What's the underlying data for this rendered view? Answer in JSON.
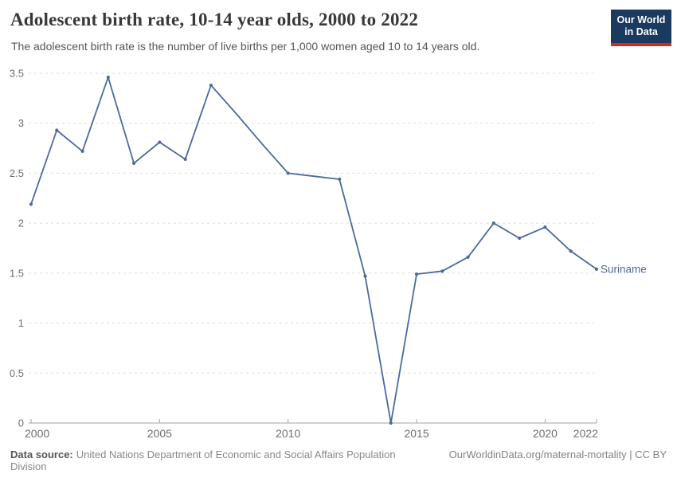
{
  "header": {
    "title": "Adolescent birth rate, 10-14 year olds, 2000 to 2022",
    "subtitle": "The adolescent birth rate is the number of live births per 1,000 women aged 10 to 14 years old.",
    "logo": {
      "line1": "Our World",
      "line2": "in Data",
      "bg_color": "#1b3a5f",
      "accent_color": "#d42b21",
      "text_color": "#ffffff"
    }
  },
  "chart_data": {
    "type": "line",
    "title": "Adolescent birth rate, 10-14 year olds, 2000 to 2022",
    "xlabel": "",
    "ylabel": "",
    "xlim": [
      2000,
      2022
    ],
    "ylim": [
      0,
      3.5
    ],
    "x_ticks": [
      "2000",
      "2005",
      "2010",
      "2015",
      "2020",
      "2022"
    ],
    "x_tick_years": [
      2000,
      2005,
      2010,
      2015,
      2020,
      2022
    ],
    "y_ticks": [
      0,
      0.5,
      1,
      1.5,
      2,
      2.5,
      3,
      3.5
    ],
    "grid": "horizontal-dashed",
    "legend_position": "end-of-line-label",
    "series": [
      {
        "name": "Suriname",
        "color": "#4C6A9C",
        "points": [
          {
            "year": 2000,
            "value": 2.19
          },
          {
            "year": 2001,
            "value": 2.93
          },
          {
            "year": 2002,
            "value": 2.72
          },
          {
            "year": 2003,
            "value": 3.46
          },
          {
            "year": 2004,
            "value": 2.6
          },
          {
            "year": 2005,
            "value": 2.81
          },
          {
            "year": 2006,
            "value": 2.64
          },
          {
            "year": 2007,
            "value": 3.38
          },
          {
            "year": 2008,
            "value": 3.09,
            "marker": false
          },
          {
            "year": 2009,
            "value": 2.79,
            "marker": false
          },
          {
            "year": 2010,
            "value": 2.5
          },
          {
            "year": 2011,
            "value": 2.47,
            "marker": false
          },
          {
            "year": 2012,
            "value": 2.44
          },
          {
            "year": 2013,
            "value": 1.47
          },
          {
            "year": 2014,
            "value": 0
          },
          {
            "year": 2015,
            "value": 1.49
          },
          {
            "year": 2016,
            "value": 1.52
          },
          {
            "year": 2017,
            "value": 1.66
          },
          {
            "year": 2018,
            "value": 2.0
          },
          {
            "year": 2019,
            "value": 1.85
          },
          {
            "year": 2020,
            "value": 1.96
          },
          {
            "year": 2021,
            "value": 1.72
          },
          {
            "year": 2022,
            "value": 1.54
          }
        ]
      }
    ]
  },
  "footer": {
    "source_label": "Data source:",
    "source_text": "United Nations Department of Economic and Social Affairs Population Division",
    "link_text": "OurWorldinData.org/maternal-mortality | CC BY"
  }
}
